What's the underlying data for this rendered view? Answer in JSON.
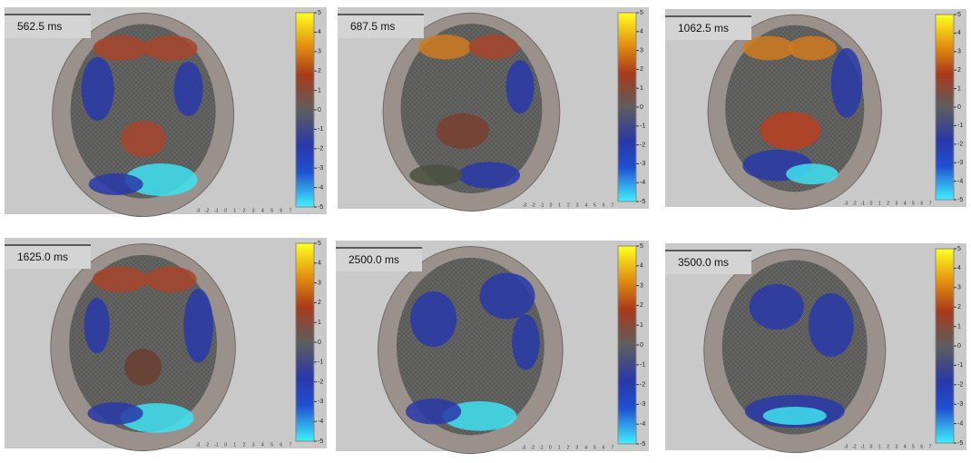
{
  "panels": [
    {
      "label": "562.5 ms"
    },
    {
      "label": "687.5 ms"
    },
    {
      "label": "1062.5 ms"
    },
    {
      "label": "1625.0 ms"
    },
    {
      "label": "2500.0 ms"
    },
    {
      "label": "3500.0 ms"
    }
  ],
  "colorbar_ticks": [
    5,
    4,
    3,
    2,
    1,
    0,
    -1,
    -2,
    -3,
    -4,
    -5
  ],
  "axis_ticks": [
    -3,
    -2,
    -1,
    0,
    1,
    2,
    3,
    4,
    5,
    6,
    7
  ]
}
